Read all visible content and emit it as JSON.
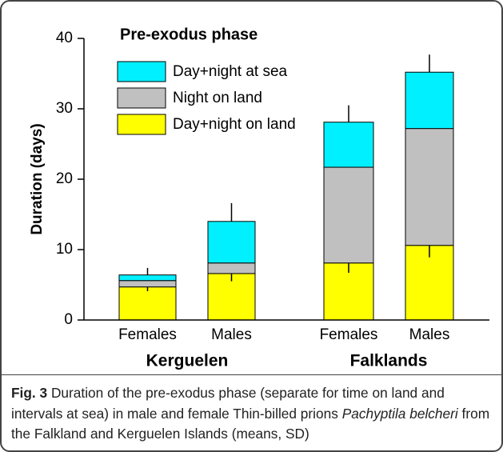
{
  "chart_data": {
    "type": "stacked_bar",
    "title": "Pre-exodus phase",
    "ylabel": "Duration (days)",
    "groups": [
      {
        "name": "Kerguelen",
        "categories": [
          "Females",
          "Males"
        ]
      },
      {
        "name": "Falklands",
        "categories": [
          "Females",
          "Males"
        ]
      }
    ],
    "series": [
      {
        "name": "Day+night on land",
        "color": "#ffff00",
        "values": [
          4.7,
          6.6,
          8.1,
          10.6
        ],
        "errors": [
          0.6,
          1.1,
          1.4,
          1.7
        ]
      },
      {
        "name": "Night on land",
        "color": "#c0c0c0",
        "values": [
          0.9,
          1.5,
          13.6,
          16.6
        ]
      },
      {
        "name": "Day+night at sea",
        "color": "#00f0ff",
        "values": [
          0.8,
          5.9,
          6.4,
          8.0
        ]
      }
    ],
    "total_errors": [
      1.0,
      2.6,
      2.4,
      2.5
    ],
    "ylim": [
      0,
      40
    ],
    "yticks": [
      0,
      10,
      20,
      30,
      40
    ]
  },
  "caption": {
    "label": "Fig. 3",
    "text": " Duration of the pre-exodus phase (separate for time on land and intervals at sea) in male and female Thin-billed prions ",
    "species": "Pachyptila belcheri",
    "text_end": " from the Falkland and Kerguelen Islands (means, SD)"
  }
}
